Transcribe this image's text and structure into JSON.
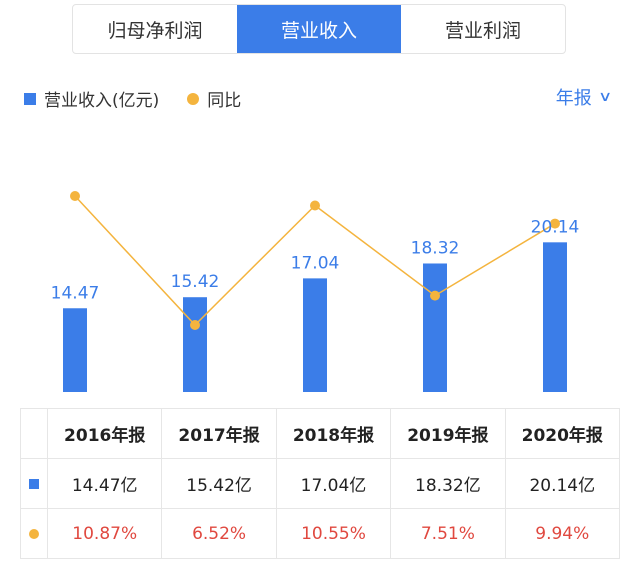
{
  "tabs": [
    {
      "label": "归母净利润",
      "active": false
    },
    {
      "label": "营业收入",
      "active": true
    },
    {
      "label": "营业利润",
      "active": false
    }
  ],
  "legend": {
    "bar_label": "营业收入(亿元)",
    "line_label": "同比"
  },
  "period_selector": {
    "label": "年报"
  },
  "colors": {
    "bar": "#3b7de8",
    "line": "#f4b43e",
    "pct_text": "#e0483f"
  },
  "chart_data": {
    "type": "bar",
    "categories": [
      "2016年报",
      "2017年报",
      "2018年报",
      "2019年报",
      "2020年报"
    ],
    "series": [
      {
        "name": "营业收入(亿元)",
        "type": "bar",
        "values": [
          14.47,
          15.42,
          17.04,
          18.32,
          20.14
        ]
      },
      {
        "name": "同比",
        "type": "line",
        "values": [
          10.87,
          6.52,
          10.55,
          7.51,
          9.94
        ]
      }
    ],
    "bar_labels": [
      "14.47",
      "15.42",
      "17.04",
      "18.32",
      "20.14"
    ]
  },
  "table": {
    "headers": [
      "2016年报",
      "2017年报",
      "2018年报",
      "2019年报",
      "2020年报"
    ],
    "revenue_row": [
      "14.47亿",
      "15.42亿",
      "17.04亿",
      "18.32亿",
      "20.14亿"
    ],
    "yoy_row": [
      "10.87%",
      "6.52%",
      "10.55%",
      "7.51%",
      "9.94%"
    ]
  }
}
